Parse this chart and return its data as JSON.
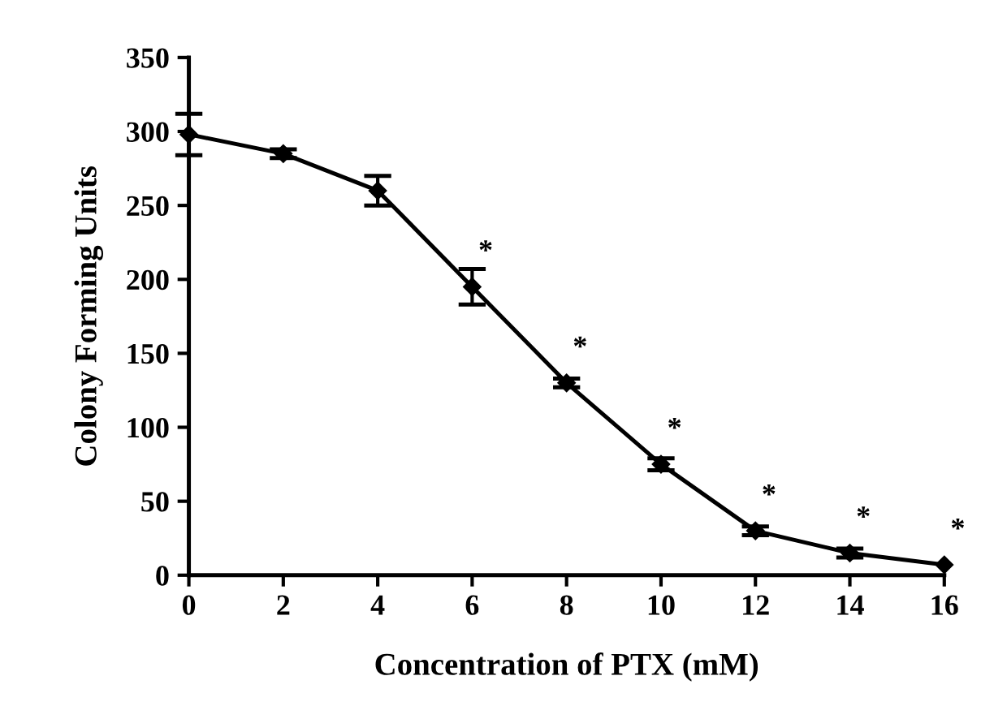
{
  "chart_data": {
    "type": "line",
    "xlabel": "Concentration of PTX (mM)",
    "ylabel": "Colony Forming Units",
    "x": [
      0,
      2,
      4,
      6,
      8,
      10,
      12,
      14,
      16
    ],
    "series": [
      {
        "color": "#000000",
        "values": [
          298,
          285,
          260,
          195,
          130,
          75,
          30,
          15,
          7
        ],
        "errors": [
          14,
          3,
          10,
          12,
          3,
          4,
          3,
          3,
          null
        ]
      }
    ],
    "annotations": [
      {
        "text": "*",
        "x": 6,
        "y": 195
      },
      {
        "text": "*",
        "x": 8,
        "y": 130
      },
      {
        "text": "*",
        "x": 10,
        "y": 75
      },
      {
        "text": "*",
        "x": 12,
        "y": 30
      },
      {
        "text": "*",
        "x": 14,
        "y": 15
      },
      {
        "text": "*",
        "x": 16,
        "y": 7
      }
    ],
    "xlim": [
      0,
      16
    ],
    "xticks": [
      0,
      2,
      4,
      6,
      8,
      10,
      12,
      14,
      16
    ],
    "ylim": [
      0,
      350
    ],
    "yticks": [
      0,
      50,
      100,
      150,
      200,
      250,
      300,
      350
    ],
    "marker": "diamond",
    "line_style": "solid",
    "grid": false
  }
}
